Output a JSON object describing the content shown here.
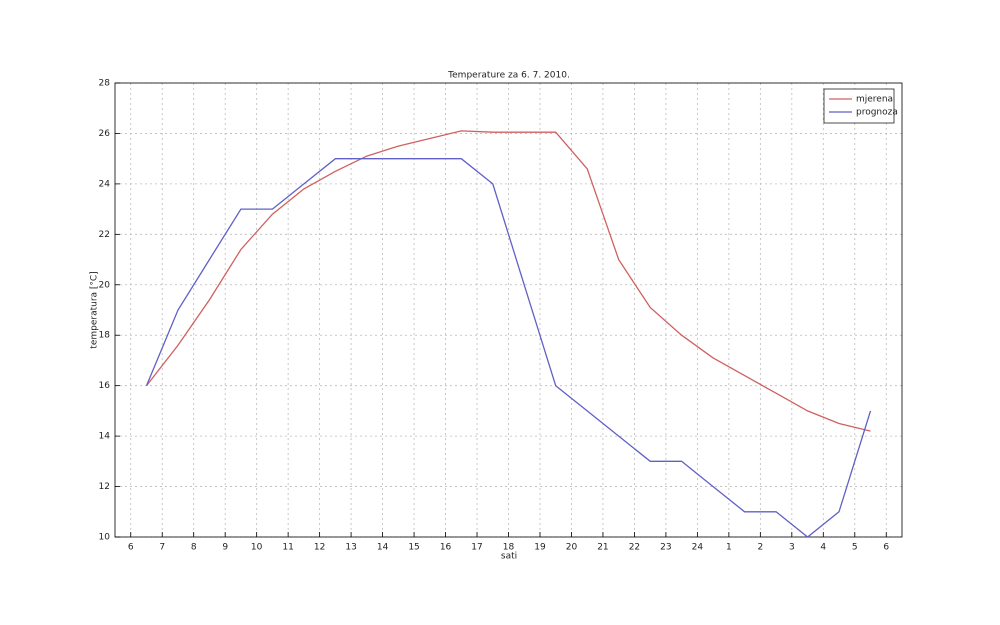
{
  "chart_data": {
    "type": "line",
    "title": "Temperature za 6. 7. 2010.",
    "x_label": "sati",
    "y_label": "temperatura [°C]",
    "x": [
      6.5,
      7.5,
      8.5,
      9.5,
      10.5,
      11.5,
      12.5,
      13.5,
      14.5,
      15.5,
      16.5,
      17.5,
      18.5,
      19.5,
      20.5,
      21.5,
      22.5,
      23.5,
      24.5,
      25.5,
      26.5,
      27.5,
      28.5,
      29.5
    ],
    "series": [
      {
        "name": "mjerena",
        "color": "#d06060",
        "values": [
          16,
          17.6,
          19.4,
          21.4,
          22.8,
          23.8,
          24.5,
          25.1,
          25.5,
          25.8,
          26.1,
          26.05,
          26.05,
          26.05,
          24.6,
          21,
          19.1,
          18,
          17.1,
          16.4,
          15.7,
          15,
          14.5,
          14.2
        ]
      },
      {
        "name": "prognoza",
        "color": "#6060c8",
        "values": [
          16,
          19,
          21,
          23,
          23,
          24,
          25,
          25,
          25,
          25,
          25,
          24,
          20,
          16,
          15,
          14,
          13,
          13,
          12,
          11,
          11,
          10,
          11,
          15
        ]
      }
    ],
    "xlim": [
      5.5,
      30.5
    ],
    "ylim": [
      10,
      28
    ],
    "xticks": [
      6,
      7,
      8,
      9,
      10,
      11,
      12,
      13,
      14,
      15,
      16,
      17,
      18,
      19,
      20,
      21,
      22,
      23,
      24,
      {
        "value": 25,
        "label": "1"
      },
      {
        "value": 26,
        "label": "2"
      },
      {
        "value": 27,
        "label": "3"
      },
      {
        "value": 28,
        "label": "4"
      },
      {
        "value": 29,
        "label": "5"
      },
      {
        "value": 30,
        "label": "6"
      }
    ],
    "yticks": [
      10,
      12,
      14,
      16,
      18,
      20,
      22,
      24,
      26,
      28
    ],
    "grid": true,
    "legend": "northeast"
  }
}
